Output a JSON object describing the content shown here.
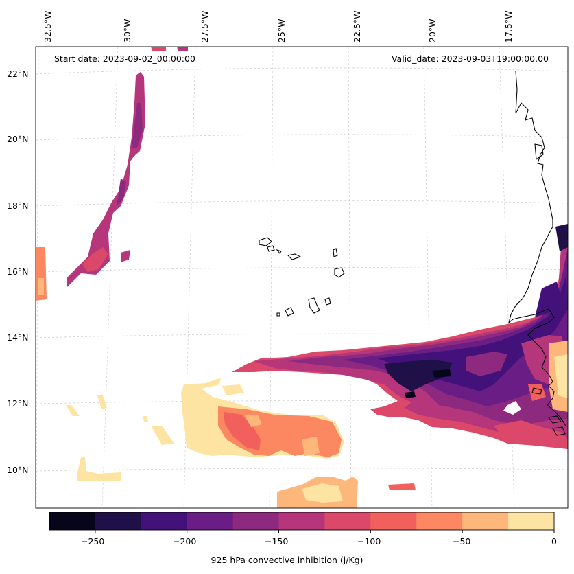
{
  "header": {
    "start_date": "Start date: 2023-09-02_00:00:00",
    "valid_date": "Valid_date: 2023-09-03T19:00:00.00"
  },
  "lon_labels": [
    "32.5°W",
    "30°W",
    "27.5°W",
    "25°W",
    "22.5°W",
    "20°W",
    "17.5°W"
  ],
  "lat_labels": [
    "22°N",
    "20°N",
    "18°N",
    "16°N",
    "14°N",
    "12°N",
    "10°N"
  ],
  "colorbar": {
    "label": "925 hPa convective inhibition (j/Kg)",
    "ticks": [
      "−250",
      "−200",
      "−150",
      "−100",
      "−50",
      "0"
    ],
    "levels": [
      -275,
      -250,
      -225,
      -200,
      -175,
      -150,
      -125,
      -100,
      -75,
      -50,
      -25,
      0
    ],
    "colors": [
      "#06051a",
      "#1f1147",
      "#43117a",
      "#6a1d84",
      "#8d2a7f",
      "#b5367a",
      "#dc4869",
      "#f1605d",
      "#fb8861",
      "#fdb77b",
      "#fde4a3"
    ]
  },
  "colors": {
    "coastline": "#000000",
    "grid": "#cccccc",
    "frame": "#000000"
  }
}
